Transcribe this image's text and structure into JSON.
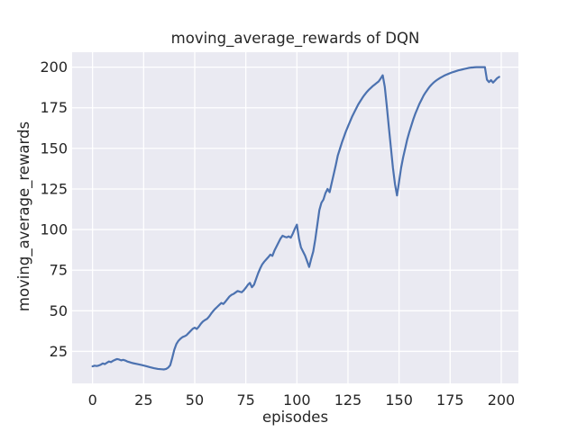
{
  "chart_data": {
    "type": "line",
    "title": "moving_average_rewards of DQN",
    "xlabel": "episodes",
    "ylabel": "moving_average_rewards",
    "x_ticks": [
      0,
      25,
      50,
      75,
      100,
      125,
      150,
      175,
      200
    ],
    "y_ticks": [
      25,
      50,
      75,
      100,
      125,
      150,
      175,
      200
    ],
    "xlim": [
      -10,
      208.4
    ],
    "ylim": [
      5.3,
      209.2
    ],
    "grid": true,
    "grid_on": "both",
    "legend": false,
    "colors": {
      "line": "#4C72B0",
      "axes_background": "#EAEAF2",
      "grid": "#FFFFFF",
      "text": "#262626",
      "figure_background": "#FFFFFF"
    },
    "series": [
      {
        "name": "DQN moving average reward",
        "points": [
          [
            0,
            15.8
          ],
          [
            1,
            16.2
          ],
          [
            2,
            16.0
          ],
          [
            3,
            16.3
          ],
          [
            4,
            16.8
          ],
          [
            5,
            17.6
          ],
          [
            6,
            17.2
          ],
          [
            7,
            18.0
          ],
          [
            8,
            18.8
          ],
          [
            9,
            18.4
          ],
          [
            10,
            19.2
          ],
          [
            11,
            19.8
          ],
          [
            12,
            20.3
          ],
          [
            13,
            20.0
          ],
          [
            14,
            19.5
          ],
          [
            15,
            19.8
          ],
          [
            16,
            19.4
          ],
          [
            17,
            18.8
          ],
          [
            18,
            18.4
          ],
          [
            19,
            18.0
          ],
          [
            20,
            17.7
          ],
          [
            22,
            17.2
          ],
          [
            24,
            16.6
          ],
          [
            26,
            16.0
          ],
          [
            28,
            15.3
          ],
          [
            30,
            14.7
          ],
          [
            32,
            14.2
          ],
          [
            34,
            14.0
          ],
          [
            35,
            13.9
          ],
          [
            36,
            14.2
          ],
          [
            37,
            15.0
          ],
          [
            38,
            16.5
          ],
          [
            39,
            21.0
          ],
          [
            40,
            26.0
          ],
          [
            41,
            29.5
          ],
          [
            42,
            31.5
          ],
          [
            43,
            32.8
          ],
          [
            44,
            33.8
          ],
          [
            45,
            34.3
          ],
          [
            46,
            35.0
          ],
          [
            47,
            36.3
          ],
          [
            48,
            37.6
          ],
          [
            49,
            38.9
          ],
          [
            50,
            39.6
          ],
          [
            51,
            38.8
          ],
          [
            52,
            40.2
          ],
          [
            53,
            42.0
          ],
          [
            54,
            43.4
          ],
          [
            55,
            44.3
          ],
          [
            56,
            45.0
          ],
          [
            57,
            46.4
          ],
          [
            58,
            48.2
          ],
          [
            59,
            49.8
          ],
          [
            60,
            51.2
          ],
          [
            61,
            52.4
          ],
          [
            62,
            53.6
          ],
          [
            63,
            54.8
          ],
          [
            64,
            54.2
          ],
          [
            65,
            55.6
          ],
          [
            66,
            57.2
          ],
          [
            67,
            58.8
          ],
          [
            68,
            59.8
          ],
          [
            69,
            60.4
          ],
          [
            70,
            61.3
          ],
          [
            71,
            62.2
          ],
          [
            72,
            61.8
          ],
          [
            73,
            61.4
          ],
          [
            74,
            62.6
          ],
          [
            75,
            64.2
          ],
          [
            76,
            66.0
          ],
          [
            77,
            67.2
          ],
          [
            78,
            64.5
          ],
          [
            79,
            66.0
          ],
          [
            80,
            69.5
          ],
          [
            81,
            73.0
          ],
          [
            82,
            76.0
          ],
          [
            83,
            78.5
          ],
          [
            84,
            80.2
          ],
          [
            85,
            81.6
          ],
          [
            86,
            83.0
          ],
          [
            87,
            84.6
          ],
          [
            88,
            83.8
          ],
          [
            89,
            87.0
          ],
          [
            90,
            89.5
          ],
          [
            91,
            92.0
          ],
          [
            92,
            94.5
          ],
          [
            93,
            96.2
          ],
          [
            94,
            95.6
          ],
          [
            95,
            95.2
          ],
          [
            96,
            95.8
          ],
          [
            97,
            95.0
          ],
          [
            98,
            97.5
          ],
          [
            99,
            100.5
          ],
          [
            100,
            103.0
          ],
          [
            101,
            94.5
          ],
          [
            102,
            89.0
          ],
          [
            103,
            86.5
          ],
          [
            104,
            84.0
          ],
          [
            105,
            80.5
          ],
          [
            106,
            77.0
          ],
          [
            107,
            82.0
          ],
          [
            108,
            86.5
          ],
          [
            109,
            94.0
          ],
          [
            110,
            103.0
          ],
          [
            111,
            112.0
          ],
          [
            112,
            116.5
          ],
          [
            113,
            118.5
          ],
          [
            114,
            122.5
          ],
          [
            115,
            125.0
          ],
          [
            116,
            123.0
          ],
          [
            117,
            128.5
          ],
          [
            118,
            134.0
          ],
          [
            119,
            139.5
          ],
          [
            120,
            145.5
          ],
          [
            121,
            149.5
          ],
          [
            122,
            153.5
          ],
          [
            123,
            157.0
          ],
          [
            124,
            160.5
          ],
          [
            125,
            163.5
          ],
          [
            126,
            166.5
          ],
          [
            127,
            169.5
          ],
          [
            128,
            172.0
          ],
          [
            129,
            174.5
          ],
          [
            130,
            177.0
          ],
          [
            131,
            179.0
          ],
          [
            132,
            181.0
          ],
          [
            133,
            182.8
          ],
          [
            134,
            184.4
          ],
          [
            135,
            185.8
          ],
          [
            136,
            187.0
          ],
          [
            137,
            188.2
          ],
          [
            138,
            189.2
          ],
          [
            139,
            190.2
          ],
          [
            140,
            191.2
          ],
          [
            141,
            193.0
          ],
          [
            142,
            195.0
          ],
          [
            143,
            188.0
          ],
          [
            144,
            176.0
          ],
          [
            145,
            163.0
          ],
          [
            146,
            150.5
          ],
          [
            147,
            138.0
          ],
          [
            148,
            128.0
          ],
          [
            149,
            121.0
          ],
          [
            150,
            129.5
          ],
          [
            151,
            138.0
          ],
          [
            152,
            144.5
          ],
          [
            153,
            150.0
          ],
          [
            154,
            155.5
          ],
          [
            155,
            160.0
          ],
          [
            156,
            164.0
          ],
          [
            157,
            168.0
          ],
          [
            158,
            171.5
          ],
          [
            159,
            174.5
          ],
          [
            160,
            177.5
          ],
          [
            161,
            180.0
          ],
          [
            162,
            182.5
          ],
          [
            163,
            184.5
          ],
          [
            164,
            186.3
          ],
          [
            165,
            188.0
          ],
          [
            166,
            189.4
          ],
          [
            167,
            190.6
          ],
          [
            168,
            191.6
          ],
          [
            169,
            192.5
          ],
          [
            170,
            193.3
          ],
          [
            171,
            194.0
          ],
          [
            172,
            194.7
          ],
          [
            173,
            195.3
          ],
          [
            174,
            195.8
          ],
          [
            175,
            196.3
          ],
          [
            176,
            196.8
          ],
          [
            177,
            197.2
          ],
          [
            178,
            197.6
          ],
          [
            179,
            198.0
          ],
          [
            180,
            198.3
          ],
          [
            181,
            198.6
          ],
          [
            182,
            198.9
          ],
          [
            183,
            199.2
          ],
          [
            184,
            199.5
          ],
          [
            185,
            199.7
          ],
          [
            186,
            199.8
          ],
          [
            187,
            199.9
          ],
          [
            188,
            200.0
          ],
          [
            190,
            200.0
          ],
          [
            192,
            200.0
          ],
          [
            193,
            192.3
          ],
          [
            194,
            190.8
          ],
          [
            195,
            192.0
          ],
          [
            196,
            190.5
          ],
          [
            197,
            191.8
          ],
          [
            198,
            193.2
          ],
          [
            199,
            194.0
          ]
        ]
      }
    ]
  }
}
